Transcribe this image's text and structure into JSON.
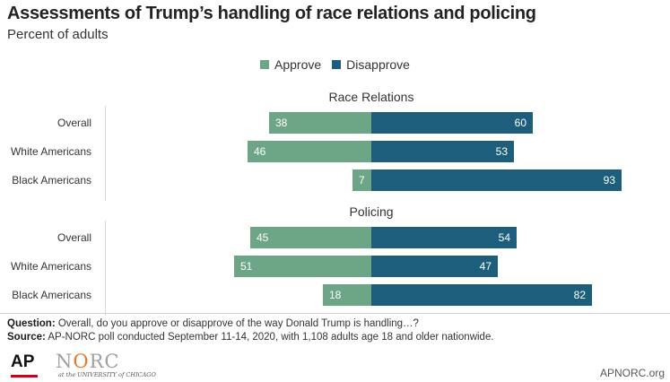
{
  "title": "Assessments of Trump’s handling of race relations and policing",
  "subtitle": "Percent of adults",
  "legend": [
    {
      "label": "Approve",
      "color": "#6da587"
    },
    {
      "label": "Disapprove",
      "color": "#1c5e7b"
    }
  ],
  "chart_data": {
    "type": "bar",
    "orientation": "horizontal-diverging",
    "categories": [
      "Overall",
      "White Americans",
      "Black Americans"
    ],
    "groups": [
      {
        "name": "Race Relations",
        "series": [
          {
            "name": "Approve",
            "values": [
              38,
              46,
              7
            ]
          },
          {
            "name": "Disapprove",
            "values": [
              60,
              53,
              93
            ]
          }
        ]
      },
      {
        "name": "Policing",
        "series": [
          {
            "name": "Approve",
            "values": [
              45,
              51,
              18
            ]
          },
          {
            "name": "Disapprove",
            "values": [
              54,
              47,
              82
            ]
          }
        ]
      }
    ],
    "xlim": [
      -100,
      100
    ],
    "grid": false,
    "legend_position": "top-center"
  },
  "notes": {
    "question_label": "Question:",
    "question_text": " Overall, do you approve or disapprove of the way Donald Trump is handling…?",
    "source_label": "Source:",
    "source_text": " AP-NORC poll conducted September 11-14, 2020, with 1,108 adults age 18 and older nationwide."
  },
  "footer": {
    "ap_logo": "AP",
    "norc_logo_prefix": "N",
    "norc_logo_o": "O",
    "norc_logo_suffix": "RC",
    "norc_sub": "at the UNIVERSITY of CHICAGO",
    "site": "APNORC.org"
  }
}
